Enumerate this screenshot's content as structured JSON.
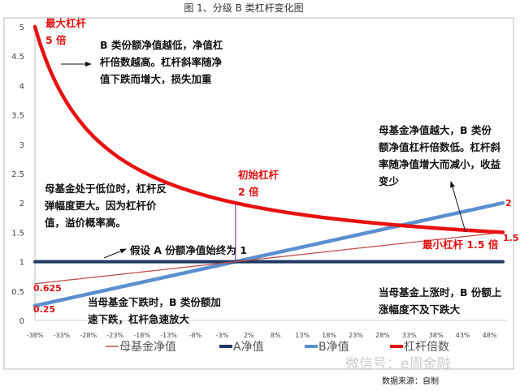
{
  "chart_data": {
    "type": "line",
    "title": "图 1、分级 B 类杠杆变化图",
    "x": [
      -37.5,
      -35,
      -32.5,
      -30,
      -27.5,
      -25,
      -22.5,
      -20,
      -17.5,
      -15,
      -12.5,
      -10,
      -7.5,
      -5,
      -2.5,
      0,
      2.5,
      5,
      7.5,
      10,
      12.5,
      15,
      17.5,
      20,
      22.5,
      25,
      27.5,
      30,
      32.5,
      35,
      37.5,
      40,
      42.5,
      45,
      47.5,
      50
    ],
    "x_tick_labels": [
      "-38%",
      "-33%",
      "-28%",
      "-23%",
      "-18%",
      "-13%",
      "-8%",
      "-3%",
      "2%",
      "8%",
      "13%",
      "18%",
      "23%",
      "28%",
      "33%",
      "38%",
      "43%",
      "48%"
    ],
    "y_ticks": [
      "0",
      "0.5",
      "1",
      "1.5",
      "2",
      "2.5",
      "3",
      "3.5",
      "4",
      "4.5",
      "5"
    ],
    "ylim": [
      0,
      5
    ],
    "grid": false,
    "legend_position": "bottom",
    "series": [
      {
        "name": "母基金净值",
        "color": "#c0504d",
        "formula": "1+x"
      },
      {
        "name": "A净值",
        "color": "#1f3864",
        "formula": "1"
      },
      {
        "name": "B净值",
        "color": "#5b8fd0",
        "formula": "2(1+x)-1"
      },
      {
        "name": "杠杆倍数",
        "color": "#e81010",
        "formula": "2(1+x)/(2(1+x)-1)"
      }
    ],
    "annotations": {
      "max_leverage": "最大杠杆 5 倍",
      "initial_leverage": "初始杠杆 2 倍",
      "min_leverage": "最小杠杆 1.5 倍",
      "note_top": "B 类份额净值越低，净值杠杆倍数越高。杠杆斜率随净值下跌而增大，损失加重",
      "note_right": "母基金净值越大，B 类份额净值杠杆倍数低。杠杆斜率随净值增大而减小，收益变少",
      "note_left": "母基金处于低位时，杠杆反弹幅度更大。因为杠杆价值，溢价概率高。",
      "note_a": "假设 A 份额净值始终为 1",
      "note_bottom_left": "当母基金下跌时，B 类份额加速下跌，杠杆急速放大",
      "note_bottom_right": "当母基金上涨时，B 份额上涨幅度不及下跌大",
      "label_0625": "0.625",
      "label_025": "0.25",
      "label_2": "2",
      "label_15": "1.5"
    }
  },
  "source": "数据来源：自制",
  "watermark": "微信号：e周金融"
}
